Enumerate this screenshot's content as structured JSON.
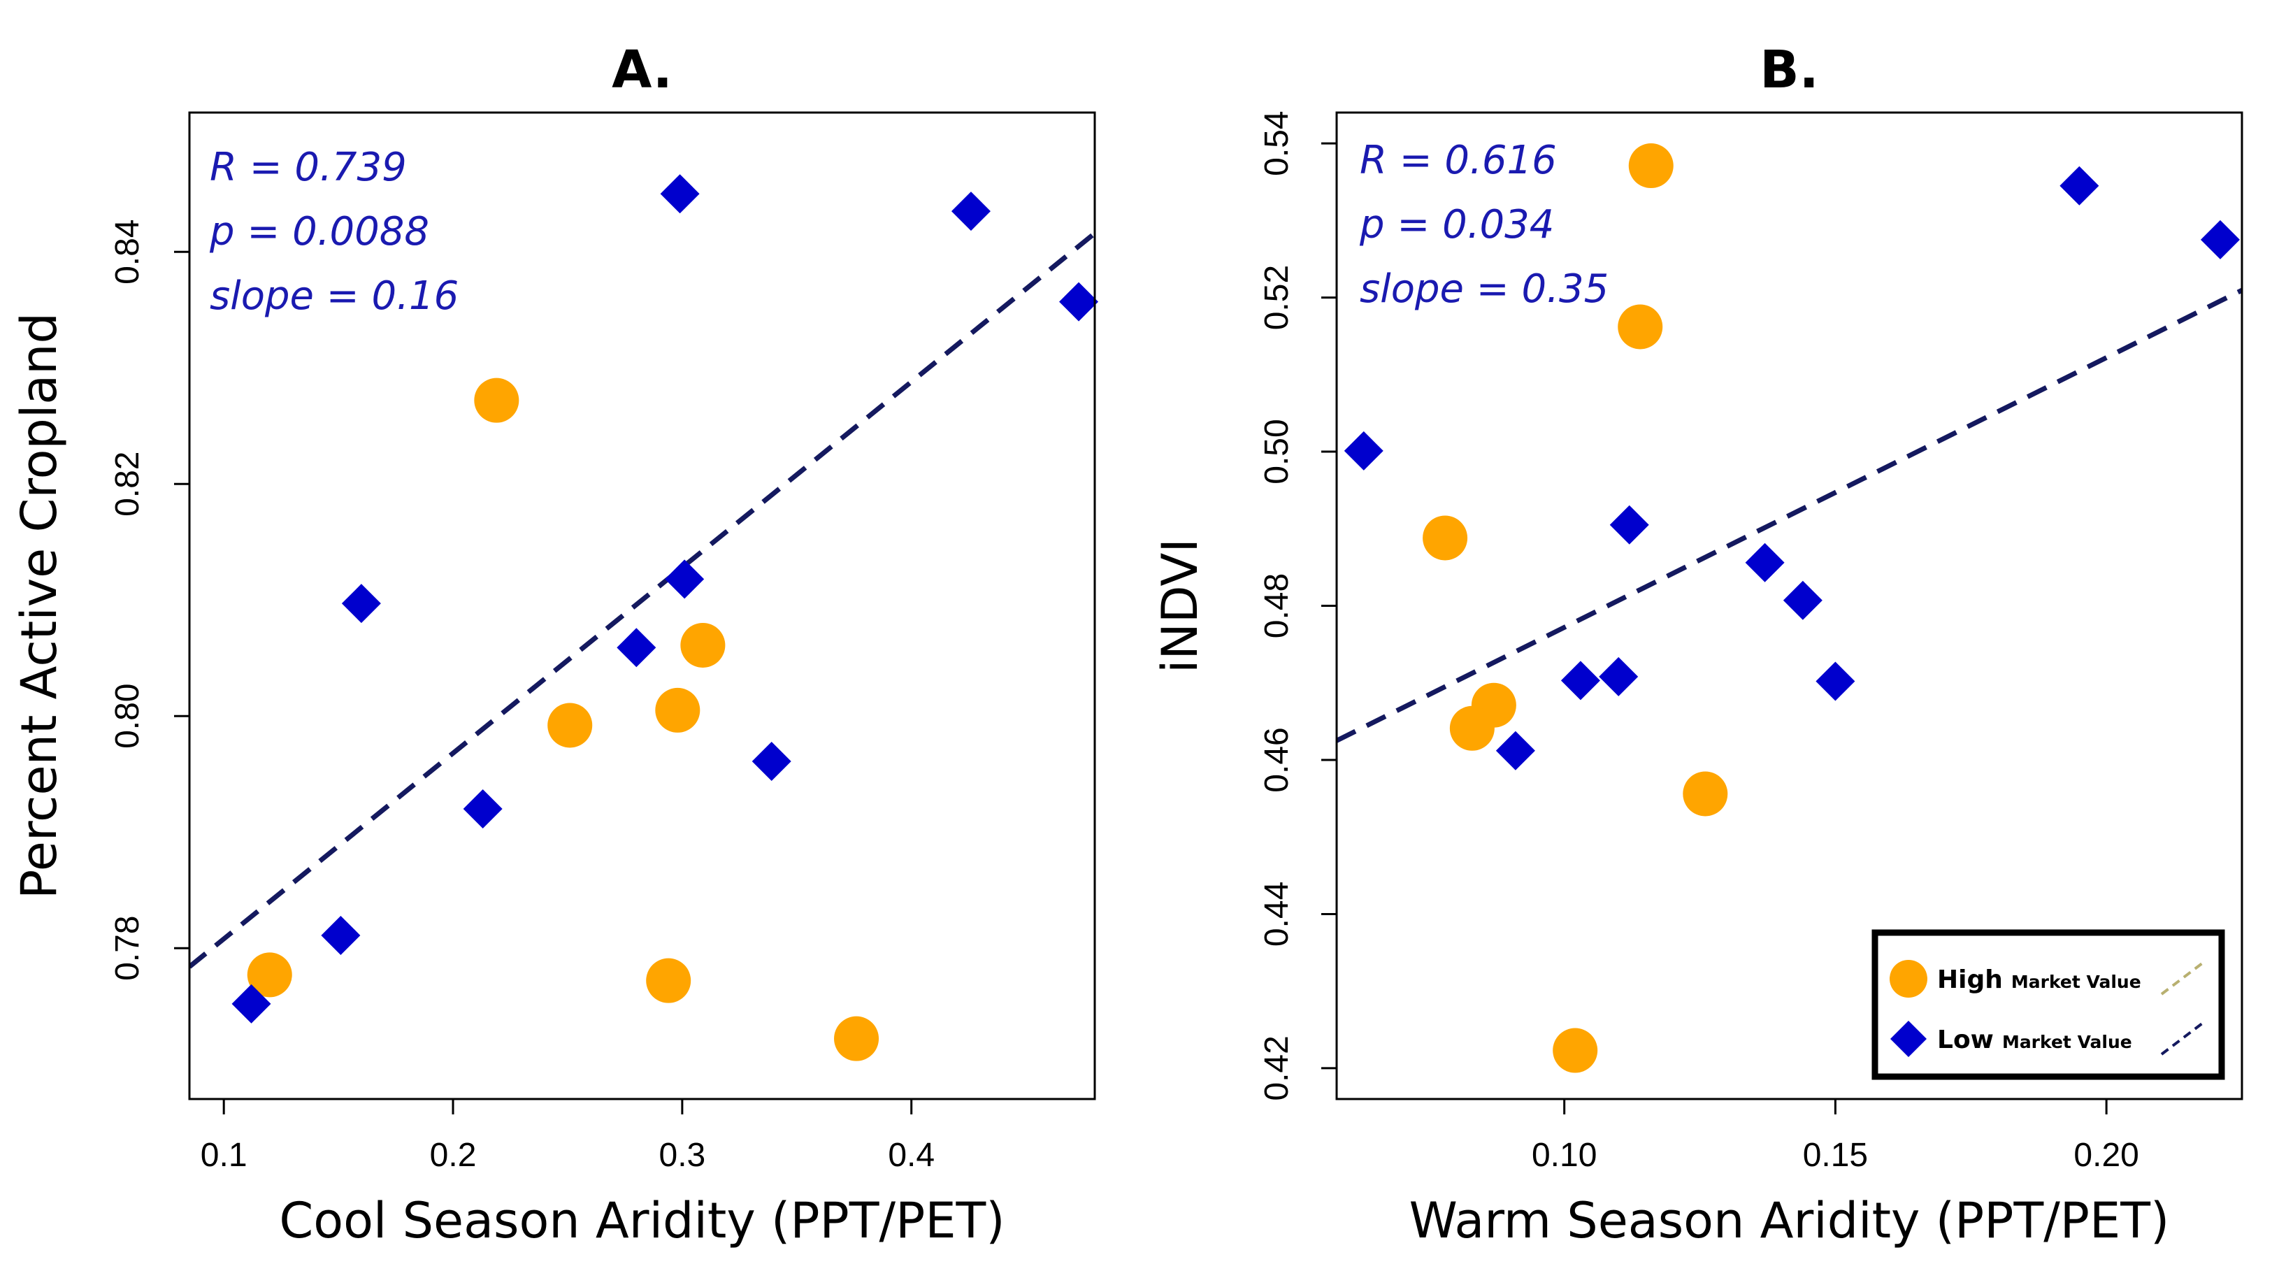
{
  "chart_data": [
    {
      "panel": "A",
      "type": "scatter",
      "title": "A.",
      "xlabel": "Cool Season Aridity (PPT/PET)",
      "ylabel": "Percent Active Cropland",
      "xlim": [
        0.085,
        0.48
      ],
      "ylim": [
        0.767,
        0.852
      ],
      "xticks": [
        0.1,
        0.2,
        0.3,
        0.4
      ],
      "xtick_labels": [
        "0.1",
        "0.2",
        "0.3",
        "0.4"
      ],
      "yticks": [
        0.78,
        0.8,
        0.82,
        0.84
      ],
      "ytick_labels": [
        "0.78",
        "0.80",
        "0.82",
        "0.84"
      ],
      "annotations": [
        "R = 0.739",
        "p = 0.0088",
        "slope = 0.16"
      ],
      "trendline": {
        "slope": 0.16,
        "intercept": 0.7648
      },
      "series": [
        {
          "name": "High",
          "x": [
            0.12,
            0.219,
            0.251,
            0.298,
            0.309,
            0.294,
            0.376
          ],
          "y": [
            0.7777,
            0.8272,
            0.7992,
            0.8005,
            0.8061,
            0.7772,
            0.7722
          ]
        },
        {
          "name": "Low",
          "x": [
            0.112,
            0.151,
            0.16,
            0.213,
            0.28,
            0.301,
            0.299,
            0.339,
            0.426,
            0.473
          ],
          "y": [
            0.7752,
            0.7811,
            0.8097,
            0.792,
            0.8059,
            0.8118,
            0.845,
            0.7961,
            0.8435,
            0.8357
          ]
        }
      ]
    },
    {
      "panel": "B",
      "type": "scatter",
      "title": "B.",
      "xlabel": "Warm Season Aridity (PPT/PET)",
      "ylabel": "iNDVI",
      "xlim": [
        0.058,
        0.225
      ],
      "ylim": [
        0.416,
        0.544
      ],
      "xticks": [
        0.1,
        0.15,
        0.2
      ],
      "xtick_labels": [
        "0.10",
        "0.15",
        "0.20"
      ],
      "yticks": [
        0.42,
        0.44,
        0.46,
        0.48,
        0.5,
        0.52,
        0.54
      ],
      "ytick_labels": [
        "0.42",
        "0.44",
        "0.46",
        "0.48",
        "0.50",
        "0.52",
        "0.54"
      ],
      "annotations": [
        "R = 0.616",
        "p = 0.034",
        "slope = 0.35"
      ],
      "trendline": {
        "slope": 0.35,
        "intercept": 0.4422
      },
      "series": [
        {
          "name": "High",
          "x": [
            0.116,
            0.114,
            0.078,
            0.087,
            0.083,
            0.126,
            0.102
          ],
          "y": [
            0.5371,
            0.5162,
            0.4888,
            0.4671,
            0.4641,
            0.4556,
            0.4223
          ]
        },
        {
          "name": "Low",
          "x": [
            0.063,
            0.112,
            0.137,
            0.144,
            0.15,
            0.103,
            0.11,
            0.091,
            0.195,
            0.221
          ],
          "y": [
            0.5001,
            0.4905,
            0.4856,
            0.4807,
            0.4702,
            0.4703,
            0.4708,
            0.4612,
            0.5345,
            0.5275
          ]
        }
      ]
    }
  ],
  "legend": {
    "items": [
      {
        "name": "High",
        "label": "High",
        "suffix": "Market Value"
      },
      {
        "name": "Low",
        "label": "Low",
        "suffix": "Market Value"
      }
    ]
  },
  "colors": {
    "high": "#FFA500",
    "low": "#0000CD",
    "trend": "#14195F",
    "stat_text": "#1A1AB0"
  }
}
